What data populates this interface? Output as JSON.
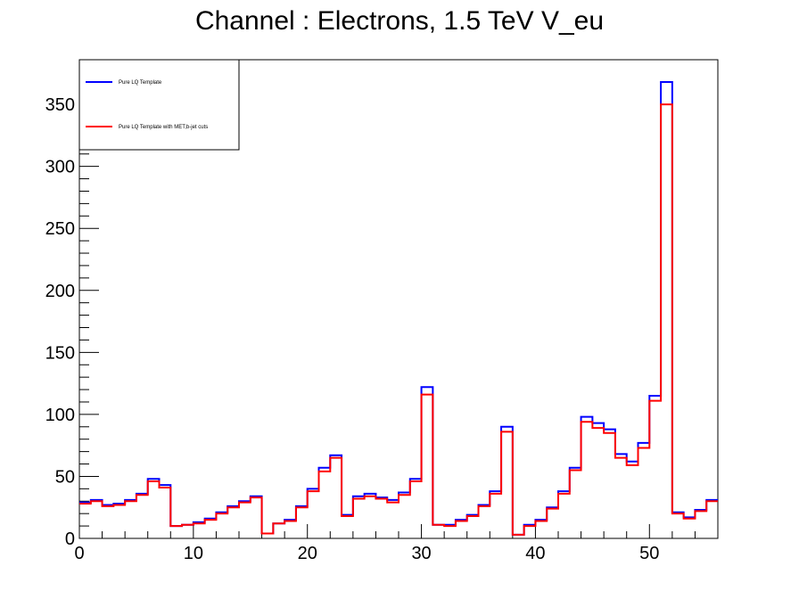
{
  "chart_data": {
    "type": "line",
    "title": "Channel : Electrons, 1.5 TeV V_eu",
    "xlabel": "",
    "ylabel": "",
    "xlim": [
      0,
      56
    ],
    "ylim": [
      0,
      386
    ],
    "x_ticks": [
      0,
      10,
      20,
      30,
      40,
      50
    ],
    "y_ticks": [
      0,
      50,
      100,
      150,
      200,
      250,
      300,
      350
    ],
    "grid": false,
    "legend_position": "top-left",
    "series": [
      {
        "name": "Pure LQ Template",
        "color": "#0000ff",
        "values": [
          29,
          31,
          27,
          28,
          31,
          36,
          48,
          43,
          10,
          11,
          13,
          16,
          21,
          26,
          30,
          34,
          4,
          12,
          15,
          26,
          40,
          57,
          67,
          19,
          34,
          36,
          33,
          31,
          37,
          48,
          122,
          11,
          11,
          15,
          19,
          27,
          38,
          90,
          3,
          11,
          15,
          25,
          38,
          57,
          98,
          93,
          88,
          68,
          62,
          77,
          115,
          368,
          21,
          17,
          23,
          31
        ]
      },
      {
        "name": "Pure LQ Template with MET,b-jet cuts",
        "color": "#ff0000",
        "values": [
          28,
          30,
          26,
          27,
          30,
          35,
          46,
          41,
          10,
          11,
          12,
          15,
          20,
          25,
          29,
          33,
          4,
          12,
          14,
          25,
          38,
          54,
          65,
          18,
          32,
          34,
          32,
          29,
          35,
          46,
          116,
          11,
          10,
          14,
          18,
          26,
          36,
          86,
          3,
          10,
          14,
          24,
          36,
          55,
          94,
          89,
          85,
          65,
          59,
          73,
          111,
          350,
          20,
          16,
          22,
          30
        ]
      }
    ]
  }
}
